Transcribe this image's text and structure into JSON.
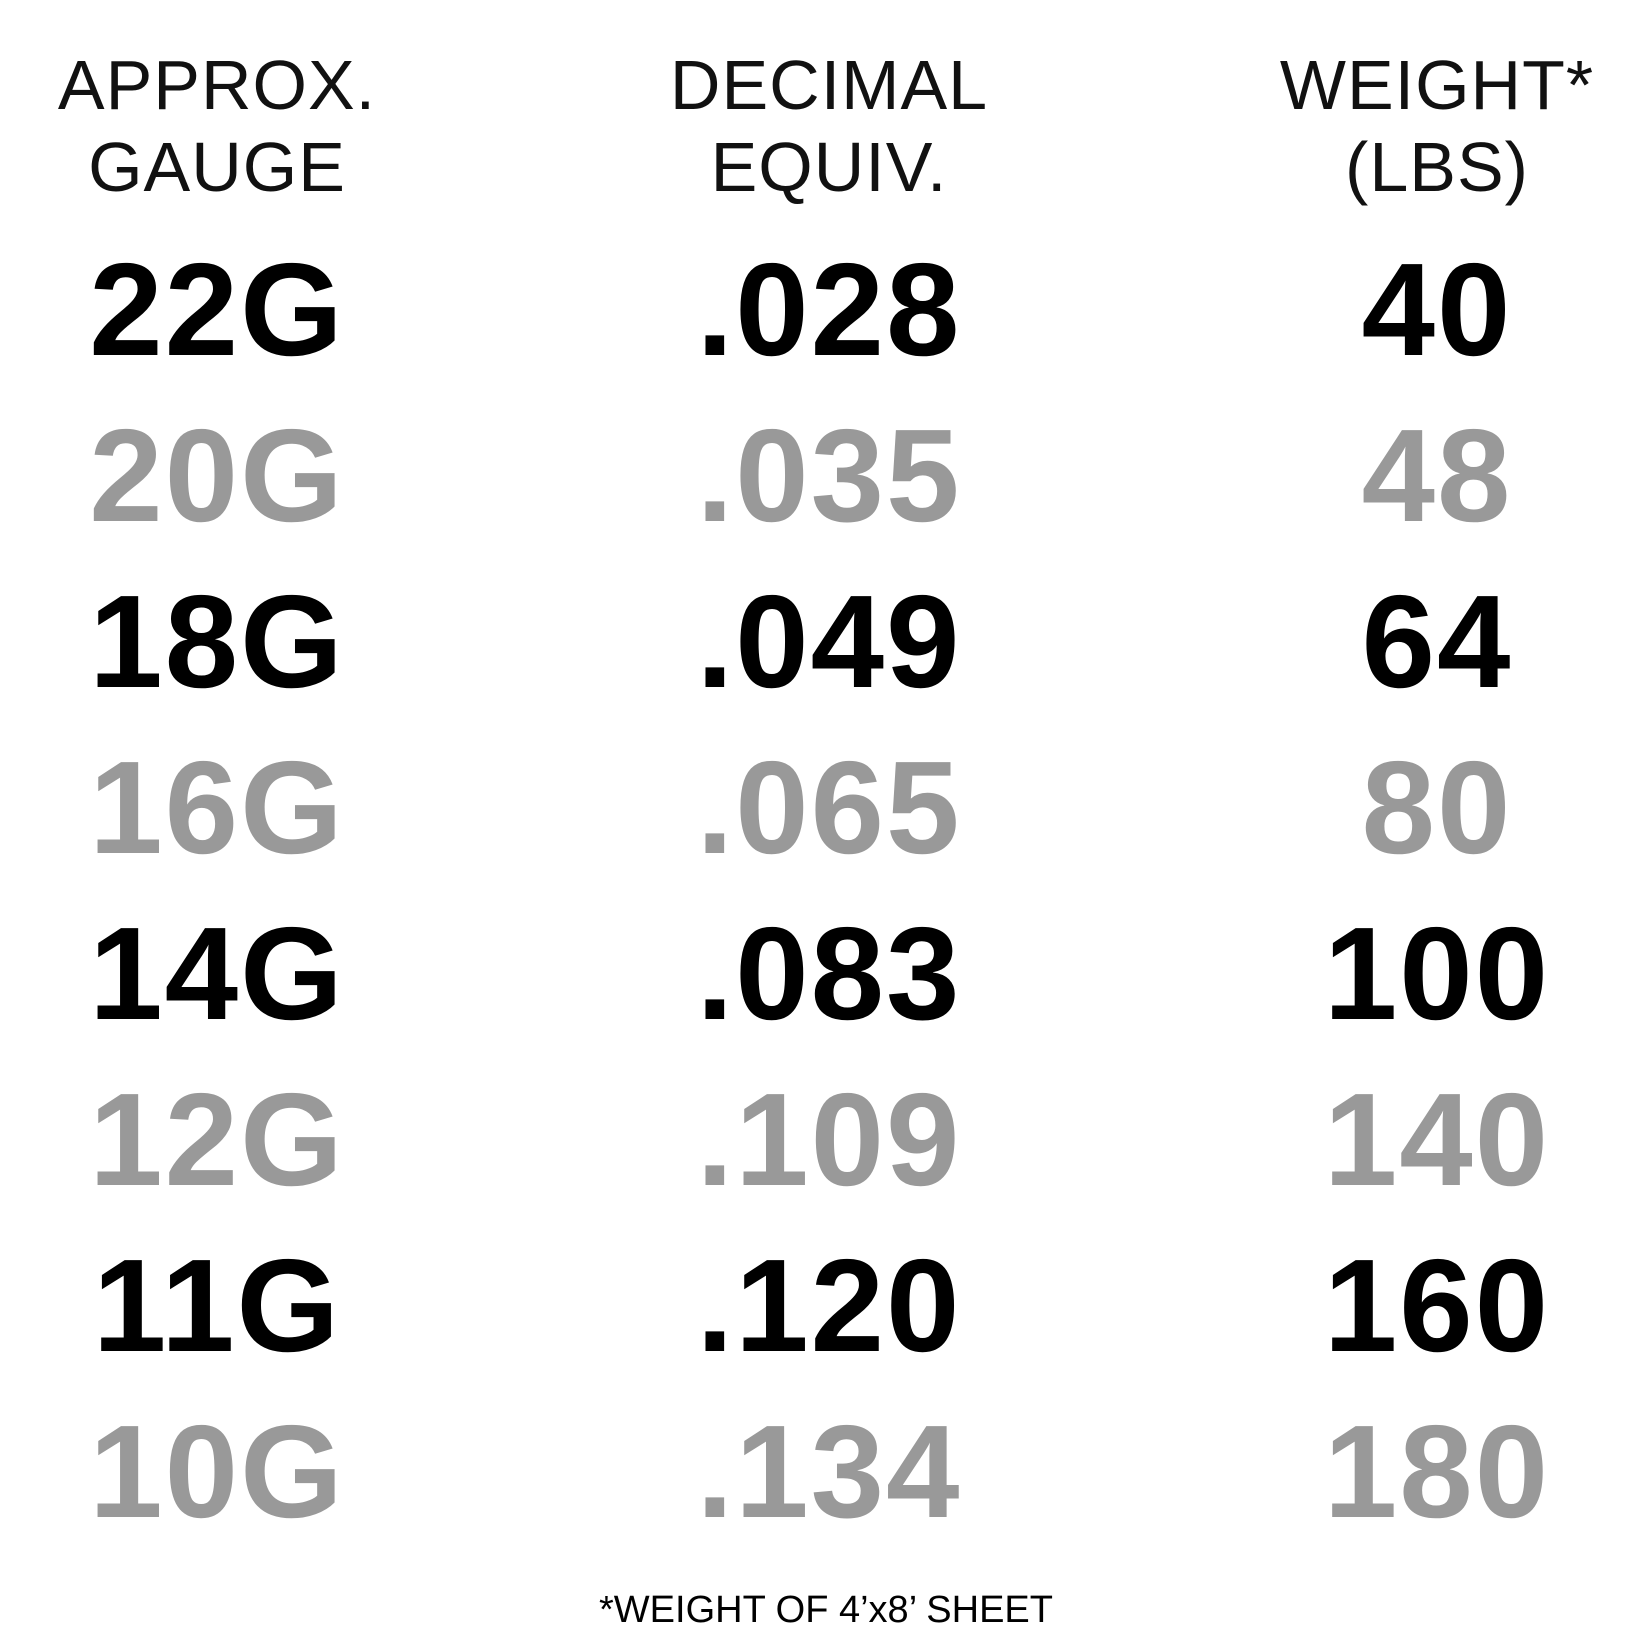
{
  "columns": [
    {
      "header": [
        "APPROX.",
        "GAUGE"
      ],
      "values": [
        "22G",
        "20G",
        "18G",
        "16G",
        "14G",
        "12G",
        "11G",
        "10G"
      ]
    },
    {
      "header": [
        "DECIMAL",
        "EQUIV."
      ],
      "values": [
        ".028",
        ".035",
        ".049",
        ".065",
        ".083",
        ".109",
        ".120",
        ".134"
      ]
    },
    {
      "header": [
        "WEIGHT*",
        "(LBS)"
      ],
      "values": [
        "40",
        "48",
        "64",
        "80",
        "100",
        "140",
        "160",
        "180"
      ]
    }
  ],
  "footnote": "*WEIGHT OF 4’x8’ SHEET",
  "colors": {
    "dark_row": "#000000",
    "light_row": "#999999"
  }
}
